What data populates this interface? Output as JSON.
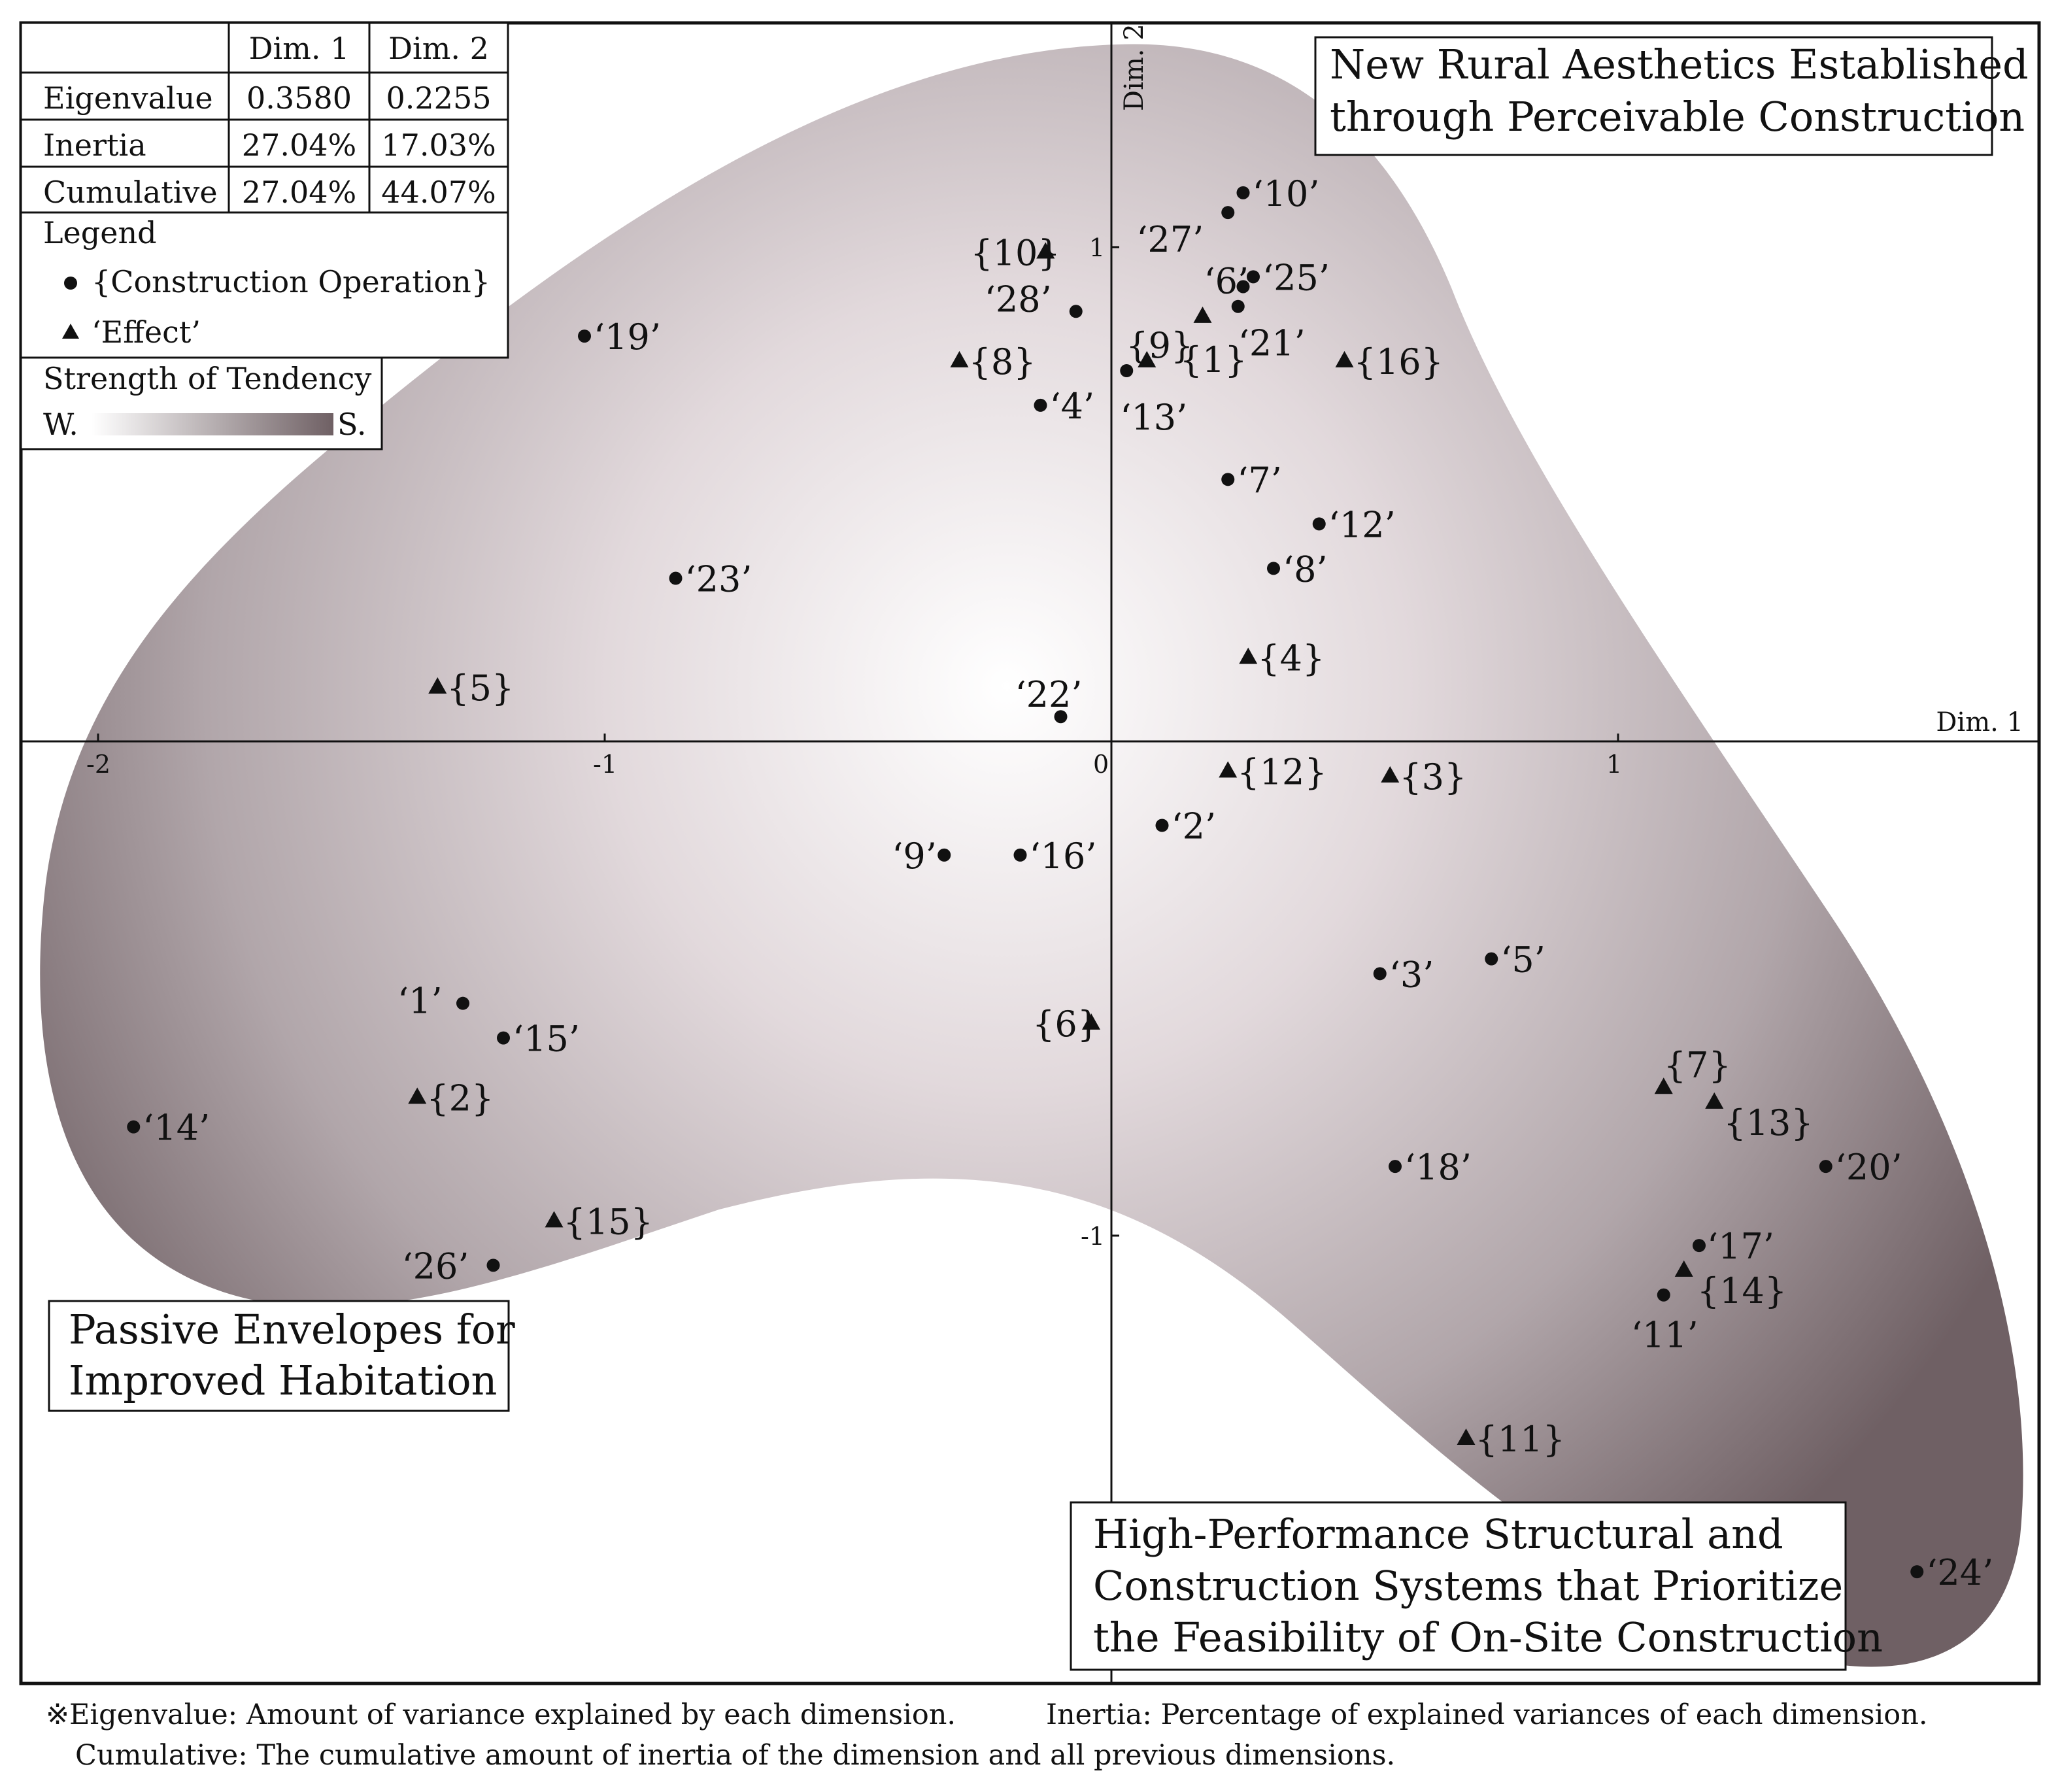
{
  "chart_data": {
    "type": "scatter",
    "title": "",
    "xlabel": "Dim. 1",
    "ylabel": "Dim. 2",
    "xlim": [
      -2.2,
      1.85
    ],
    "ylim": [
      -1.9,
      1.45
    ],
    "x_ticks": [
      "-2",
      "-1",
      "0",
      "1"
    ],
    "y_ticks": [
      "1",
      "-1"
    ],
    "x_tick_values": [
      -2,
      -1,
      0,
      1
    ],
    "y_tick_values": [
      1,
      -1
    ],
    "grid": false,
    "series": [
      {
        "name": "{Construction Operation}",
        "marker": "circle",
        "points": [
          {
            "label": "‘1’",
            "x": -1.28,
            "y": -0.53
          },
          {
            "label": "‘2’",
            "x": 0.1,
            "y": -0.17
          },
          {
            "label": "‘3’",
            "x": 0.53,
            "y": -0.47
          },
          {
            "label": "‘4’",
            "x": -0.14,
            "y": 0.68
          },
          {
            "label": "‘5’",
            "x": 0.75,
            "y": -0.44
          },
          {
            "label": "‘6’",
            "x": 0.26,
            "y": 0.92
          },
          {
            "label": "‘7’",
            "x": 0.23,
            "y": 0.53
          },
          {
            "label": "‘8’",
            "x": 0.32,
            "y": 0.35
          },
          {
            "label": "‘9’",
            "x": -0.33,
            "y": -0.23
          },
          {
            "label": "‘10’",
            "x": 0.26,
            "y": 1.11
          },
          {
            "label": "‘11’",
            "x": 1.09,
            "y": -1.12
          },
          {
            "label": "‘12’",
            "x": 0.41,
            "y": 0.44
          },
          {
            "label": "‘13’",
            "x": 0.03,
            "y": 0.75
          },
          {
            "label": "‘14’",
            "x": -1.93,
            "y": -0.78
          },
          {
            "label": "‘15’",
            "x": -1.2,
            "y": -0.6
          },
          {
            "label": "‘16’",
            "x": -0.18,
            "y": -0.23
          },
          {
            "label": "‘17’",
            "x": 1.16,
            "y": -1.02
          },
          {
            "label": "‘18’",
            "x": 0.56,
            "y": -0.86
          },
          {
            "label": "‘19’",
            "x": -1.04,
            "y": 0.82
          },
          {
            "label": "‘20’",
            "x": 1.41,
            "y": -0.86
          },
          {
            "label": "‘21’",
            "x": 0.25,
            "y": 0.88
          },
          {
            "label": "‘22’",
            "x": -0.1,
            "y": 0.05
          },
          {
            "label": "‘23’",
            "x": -0.86,
            "y": 0.33
          },
          {
            "label": "‘24’",
            "x": 1.59,
            "y": -1.68
          },
          {
            "label": "‘25’",
            "x": 0.28,
            "y": 0.94
          },
          {
            "label": "‘26’",
            "x": -1.22,
            "y": -1.06
          },
          {
            "label": "‘27’",
            "x": 0.23,
            "y": 1.07
          },
          {
            "label": "‘28’",
            "x": -0.07,
            "y": 0.87
          }
        ]
      },
      {
        "name": "‘Effect’",
        "marker": "triangle",
        "points": [
          {
            "label": "{1}",
            "x": 0.18,
            "y": 0.86
          },
          {
            "label": "{2}",
            "x": -1.37,
            "y": -0.72
          },
          {
            "label": "{3}",
            "x": 0.55,
            "y": -0.07
          },
          {
            "label": "{4}",
            "x": 0.27,
            "y": 0.17
          },
          {
            "label": "{5}",
            "x": -1.33,
            "y": 0.11
          },
          {
            "label": "{6}",
            "x": -0.04,
            "y": -0.57
          },
          {
            "label": "{7}",
            "x": 1.09,
            "y": -0.7
          },
          {
            "label": "{8}",
            "x": -0.3,
            "y": 0.77
          },
          {
            "label": "{9}",
            "x": 0.07,
            "y": 0.77
          },
          {
            "label": "{10}",
            "x": -0.13,
            "y": 0.99
          },
          {
            "label": "{11}",
            "x": 0.7,
            "y": -1.41
          },
          {
            "label": "{12}",
            "x": 0.23,
            "y": -0.06
          },
          {
            "label": "{13}",
            "x": 1.19,
            "y": -0.73
          },
          {
            "label": "{14}",
            "x": 1.13,
            "y": -1.07
          },
          {
            "label": "{15}",
            "x": -1.1,
            "y": -0.97
          },
          {
            "label": "{16}",
            "x": 0.46,
            "y": 0.77
          }
        ]
      }
    ],
    "annotations": [
      "New Rural Aesthetics Established through Perceivable Construction",
      "Passive Envelopes for Improved Habitation",
      "High-Performance Structural and Construction Systems that Prioritize the Feasibility of On-Site Construction"
    ]
  },
  "stats_table": {
    "headers": [
      "",
      "Dim. 1",
      "Dim. 2"
    ],
    "rows": [
      [
        "Eigenvalue",
        "0.3580",
        "0.2255"
      ],
      [
        "Inertia",
        "27.04%",
        "17.03%"
      ],
      [
        "Cumulative",
        "27.04%",
        "44.07%"
      ]
    ]
  },
  "legend": {
    "title": "Legend",
    "construction_label": "{Construction Operation}",
    "effect_label": "‘Effect’",
    "gradient_title": "Strength of Tendency",
    "weak": "W.",
    "strong": "S."
  },
  "region_labels": {
    "top_right": [
      "New Rural Aesthetics Established",
      "through Perceivable Construction"
    ],
    "bottom_left": [
      "Passive Envelopes for",
      "Improved Habitation"
    ],
    "bottom_right": [
      "High-Performance Structural and",
      "Construction Systems that Prioritize",
      "the Feasibility of On-Site Construction"
    ]
  },
  "footnote": {
    "line1a": "※Eigenvalue: Amount of variance explained by each dimension.",
    "line1b": "Inertia: Percentage of explained variances of each dimension.",
    "line2": "Cumulative: The cumulative amount of inertia of the dimension and all previous dimensions."
  },
  "colors": {
    "blob_center": "#ffffff",
    "blob_edge": "#7a6a70",
    "marker": "#111111",
    "frame": "#111111"
  }
}
